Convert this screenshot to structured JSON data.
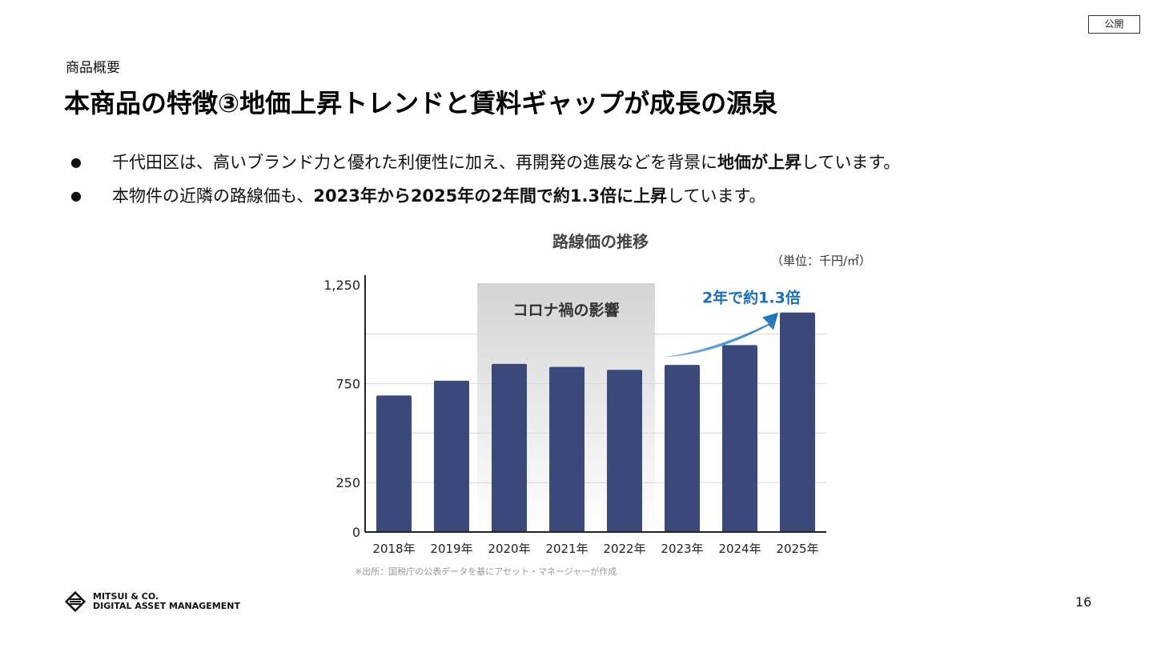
{
  "badge": "公開",
  "section_label": "商品概要",
  "title": "本商品の特徴③地価上昇トレンドと賃料ギャップが成長の源泉",
  "bullets": [
    {
      "marker": "●",
      "pre": "千代田区は、高いブランド力と優れた利便性に加え、再開発の進展などを背景に",
      "bold": "地価が上昇",
      "post": "しています。"
    },
    {
      "marker": "●",
      "pre": "本物件の近隣の路線価も、",
      "bold": "2023年から2025年の2年間で約1.3倍に上昇",
      "post": "しています。"
    }
  ],
  "source_note": "※出所：国税庁の公表データを基にアセット・マネージャーが作成",
  "logo": {
    "line1": "MITSUI & CO.",
    "line2": "DIGITAL ASSET MANAGEMENT"
  },
  "page_number": "16",
  "chart_data": {
    "type": "bar",
    "title": "路線価の推移",
    "unit": "（単位：千円/㎡）",
    "categories": [
      "2018年",
      "2019年",
      "2020年",
      "2021年",
      "2022年",
      "2023年",
      "2024年",
      "2025年"
    ],
    "values": [
      690,
      765,
      850,
      835,
      820,
      845,
      945,
      1110
    ],
    "ylim": [
      0,
      1250
    ],
    "yticks": [
      0,
      250,
      750,
      1250
    ],
    "ytick_labels": [
      "0",
      "250",
      "750",
      "1,250"
    ],
    "gridlines": [
      250,
      500,
      750,
      1000
    ],
    "bar_color": "#3b4a7a",
    "shaded_region": {
      "from": "2020年",
      "to": "2022年",
      "label": "コロナ禍の影響"
    },
    "annotation": {
      "text": "2年で約1.3倍",
      "color": "#1a6fb5"
    }
  }
}
